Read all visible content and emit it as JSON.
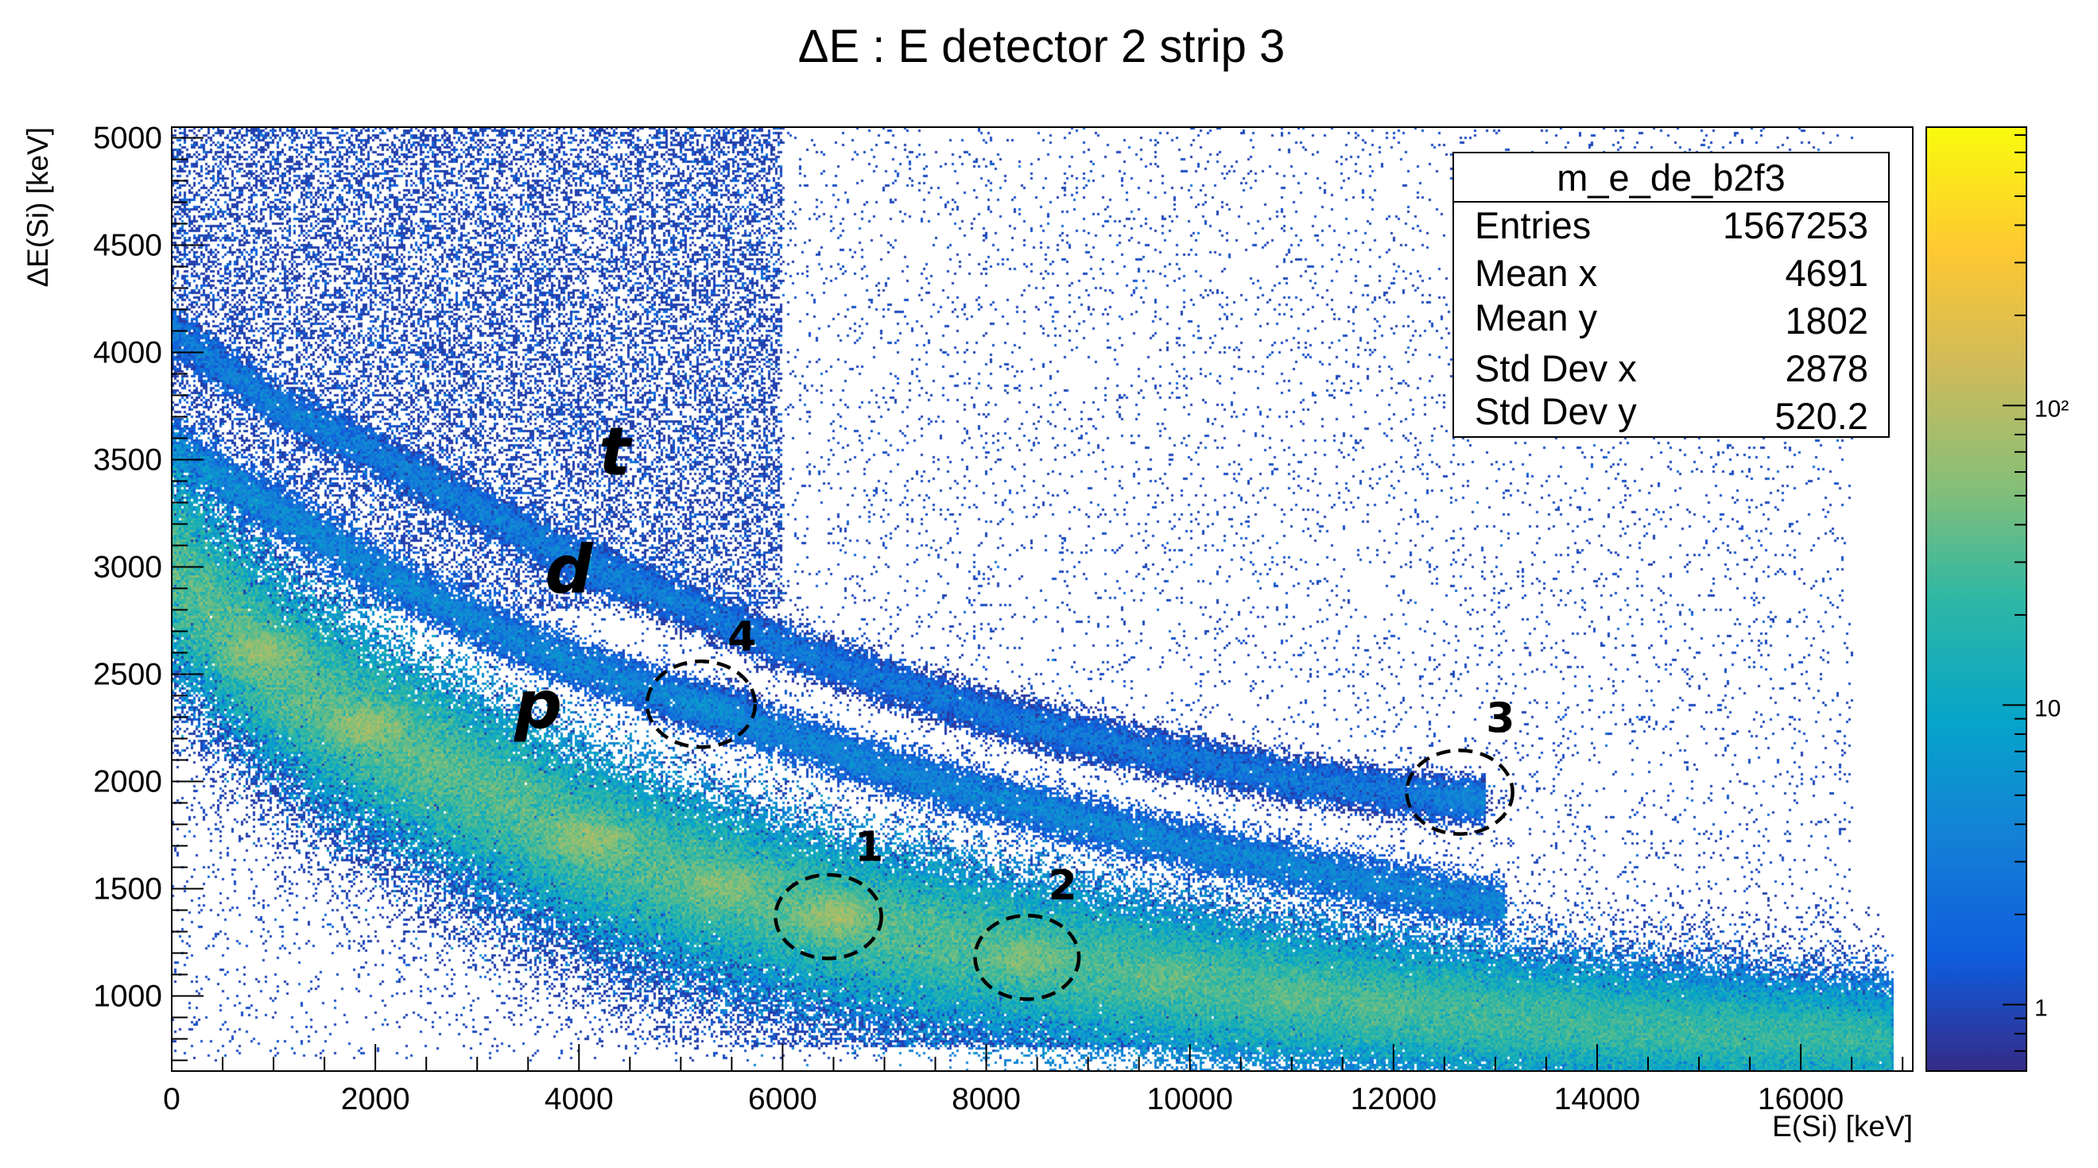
{
  "chart_data": {
    "type": "heatmap",
    "title": "ΔE : E detector 2 strip 3",
    "xlabel": "E(Si) [keV]",
    "ylabel": "ΔE(Si) [keV]",
    "xlim": [
      0,
      17100
    ],
    "ylim": [
      650,
      5050
    ],
    "x_ticks": [
      0,
      2000,
      4000,
      6000,
      8000,
      10000,
      12000,
      14000,
      16000
    ],
    "x_tick_labels": [
      "0",
      "2000",
      "4000",
      "6000",
      "8000",
      "10000",
      "12000",
      "14000",
      "16000"
    ],
    "y_ticks": [
      1000,
      1500,
      2000,
      2500,
      3000,
      3500,
      4000,
      4500,
      5000
    ],
    "y_tick_labels": [
      "1000",
      "1500",
      "2000",
      "2500",
      "3000",
      "3500",
      "4000",
      "4500",
      "5000"
    ],
    "z_scale": "log",
    "colorbar": {
      "ticks": [
        1,
        10,
        100
      ],
      "tick_labels": [
        "1",
        "10",
        "10²"
      ],
      "range": [
        0.6,
        850
      ]
    },
    "grid": false,
    "stats_box": {
      "name": "m_e_de_b2f3",
      "rows": [
        {
          "label": "Entries",
          "value": "1567253"
        },
        {
          "label": "Mean x",
          "value": "4691"
        },
        {
          "label": "Mean y",
          "value": "1802"
        },
        {
          "label": "Std Dev x",
          "value": "2878"
        },
        {
          "label": "Std Dev y",
          "value": "520.2"
        }
      ]
    },
    "bands": [
      {
        "name": "p",
        "points": [
          [
            0,
            3010
          ],
          [
            500,
            2750
          ],
          [
            1000,
            2530
          ],
          [
            1500,
            2370
          ],
          [
            2000,
            2230
          ],
          [
            3000,
            1980
          ],
          [
            4000,
            1740
          ],
          [
            5000,
            1570
          ],
          [
            6000,
            1430
          ],
          [
            7000,
            1310
          ],
          [
            8000,
            1220
          ],
          [
            9000,
            1140
          ],
          [
            10000,
            1070
          ],
          [
            11000,
            1000
          ],
          [
            12000,
            950
          ],
          [
            13000,
            900
          ],
          [
            14000,
            860
          ],
          [
            15000,
            830
          ],
          [
            16000,
            810
          ],
          [
            16900,
            790
          ]
        ],
        "width": 160,
        "peak_counts": 600
      },
      {
        "name": "d",
        "points": [
          [
            0,
            3550
          ],
          [
            1000,
            3270
          ],
          [
            2000,
            2980
          ],
          [
            3000,
            2740
          ],
          [
            4000,
            2540
          ],
          [
            5000,
            2380
          ],
          [
            6000,
            2220
          ],
          [
            7000,
            2060
          ],
          [
            8000,
            1930
          ],
          [
            9000,
            1810
          ],
          [
            10000,
            1700
          ],
          [
            11000,
            1600
          ],
          [
            12000,
            1510
          ],
          [
            13100,
            1420
          ]
        ],
        "width": 70,
        "peak_counts": 18
      },
      {
        "name": "t",
        "points": [
          [
            0,
            4100
          ],
          [
            1000,
            3760
          ],
          [
            2000,
            3520
          ],
          [
            3000,
            3270
          ],
          [
            4000,
            3030
          ],
          [
            5000,
            2830
          ],
          [
            6000,
            2630
          ],
          [
            7000,
            2470
          ],
          [
            8000,
            2320
          ],
          [
            9000,
            2200
          ],
          [
            10000,
            2100
          ],
          [
            11000,
            2010
          ],
          [
            12000,
            1950
          ],
          [
            12900,
            1900
          ]
        ],
        "width": 65,
        "peak_counts": 12
      }
    ],
    "hotspots": [
      {
        "x": 900,
        "y": 2600,
        "counts": 650
      },
      {
        "x": 1900,
        "y": 2260,
        "counts": 700
      },
      {
        "x": 4100,
        "y": 1730,
        "counts": 700
      },
      {
        "x": 5400,
        "y": 1520,
        "counts": 450
      },
      {
        "x": 6500,
        "y": 1370,
        "counts": 800
      },
      {
        "x": 8400,
        "y": 1180,
        "counts": 420
      },
      {
        "x": 9800,
        "y": 1070,
        "counts": 200
      },
      {
        "x": 11000,
        "y": 1000,
        "counts": 150
      },
      {
        "x": 11800,
        "y": 960,
        "counts": 90
      },
      {
        "x": 5300,
        "y": 2360,
        "counts": 30
      },
      {
        "x": 12700,
        "y": 1920,
        "counts": 25
      }
    ],
    "annotations": [
      {
        "type": "band-label",
        "text": "p",
        "x": 3600,
        "y": 2250
      },
      {
        "type": "band-label",
        "text": "d",
        "x": 3900,
        "y": 2880
      },
      {
        "type": "band-label",
        "text": "t",
        "x": 4350,
        "y": 3430
      },
      {
        "type": "roi",
        "text": "1",
        "x": 6450,
        "y": 1370,
        "rx": 520,
        "ry": 195,
        "label_x": 6850,
        "label_y": 1630
      },
      {
        "type": "roi",
        "text": "2",
        "x": 8400,
        "y": 1180,
        "rx": 510,
        "ry": 195,
        "label_x": 8750,
        "label_y": 1450
      },
      {
        "type": "roi",
        "text": "3",
        "x": 12650,
        "y": 1950,
        "rx": 520,
        "ry": 195,
        "label_x": 13050,
        "label_y": 2230
      },
      {
        "type": "roi",
        "text": "4",
        "x": 5200,
        "y": 2360,
        "rx": 530,
        "ry": 200,
        "label_x": 5600,
        "label_y": 2610
      }
    ]
  },
  "colors": {
    "palette": [
      "#352a87",
      "#0f5cdd",
      "#1481d6",
      "#06a4ca",
      "#2eb7a4",
      "#87bf77",
      "#d1bb59",
      "#fec832",
      "#f9fb0e"
    ],
    "background": "#ffffff",
    "roi_stroke": "#000000"
  }
}
